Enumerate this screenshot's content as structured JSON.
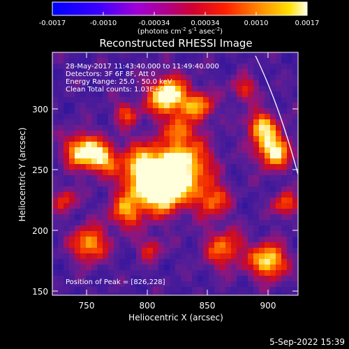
{
  "colorbar": {
    "ticks": [
      "-0.0017",
      "-0.0010",
      "-0.00034",
      "0.00034",
      "0.0010",
      "0.0017"
    ],
    "unit_prefix": "(photons cm",
    "unit_exp1": "-2",
    "unit_mid": " s",
    "unit_exp2": "-1",
    "unit_suffix1": " asec",
    "unit_exp3": "-2",
    "unit_suffix2": ")"
  },
  "title": "Reconstructed RHESSI Image",
  "info": {
    "time": "28-May-2017 11:43:40.000 to 11:49:40.000",
    "detectors": "Detectors: 3F 6F 8F, Att 0",
    "energy": "Energy Range: 25.0 - 50.0 keV",
    "clean": "Clean     Total counts: 1.03E+04"
  },
  "peak_label": "Position of Peak = [826,228]",
  "axes": {
    "xlabel": "Heliocentric X (arcsec)",
    "ylabel": "Heliocentric Y (arcsec)",
    "xticks": [
      "750",
      "800",
      "850",
      "900"
    ],
    "yticks": [
      "150",
      "200",
      "250",
      "300"
    ]
  },
  "timestamp": "5-Sep-2022 15:39"
}
